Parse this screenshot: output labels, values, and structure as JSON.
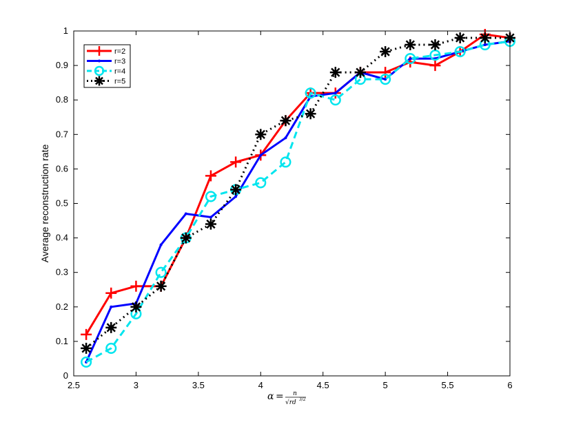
{
  "chart_data": {
    "type": "line",
    "title": "",
    "xlabel": "α = n/√(rd^{3/2})",
    "xlabel_parts": {
      "alpha": "α",
      "equals": "=",
      "numerator": "n",
      "denominator": "√rd",
      "exponent": "3/2"
    },
    "ylabel": "Average reconstruction rate",
    "xlim": [
      2.5,
      6
    ],
    "ylim": [
      0,
      1
    ],
    "xticks": [
      2.5,
      3,
      3.5,
      4,
      4.5,
      5,
      5.5,
      6
    ],
    "xtick_labels": [
      "2.5",
      "3",
      "3.5",
      "4",
      "4.5",
      "5",
      "5.5",
      "6"
    ],
    "yticks": [
      0,
      0.1,
      0.2,
      0.3,
      0.4,
      0.5,
      0.6,
      0.7,
      0.8,
      0.9,
      1
    ],
    "ytick_labels": [
      "0",
      "0.1",
      "0.2",
      "0.3",
      "0.4",
      "0.5",
      "0.6",
      "0.7",
      "0.8",
      "0.9",
      "1"
    ],
    "grid": false,
    "legend": "top-left",
    "x": [
      2.6,
      2.8,
      3.0,
      3.2,
      3.4,
      3.6,
      3.8,
      4.0,
      4.2,
      4.4,
      4.6,
      4.8,
      5.0,
      5.2,
      5.4,
      5.6,
      5.8,
      6.0
    ],
    "series": [
      {
        "name": "r=2",
        "color": "#ff0000",
        "marker": "plus",
        "line": "solid",
        "values": [
          0.12,
          0.24,
          0.26,
          0.26,
          0.4,
          0.58,
          0.62,
          0.64,
          0.74,
          0.82,
          0.82,
          0.88,
          0.88,
          0.91,
          0.9,
          0.94,
          0.99,
          0.98
        ]
      },
      {
        "name": "r=3",
        "color": "#0000ff",
        "marker": "dot",
        "line": "solid",
        "values": [
          0.04,
          0.2,
          0.21,
          0.38,
          0.47,
          0.46,
          0.52,
          0.64,
          0.69,
          0.81,
          0.82,
          0.88,
          0.86,
          0.92,
          0.92,
          0.94,
          0.96,
          0.97
        ]
      },
      {
        "name": "r=4",
        "color": "#00e5ee",
        "marker": "circle",
        "line": "dashed",
        "values": [
          0.04,
          0.08,
          0.18,
          0.3,
          0.4,
          0.52,
          0.54,
          0.56,
          0.62,
          0.82,
          0.8,
          0.86,
          0.86,
          0.92,
          0.93,
          0.94,
          0.96,
          0.97
        ]
      },
      {
        "name": "r=5",
        "color": "#000000",
        "marker": "asterisk",
        "line": "dotted",
        "values": [
          0.08,
          0.14,
          0.2,
          0.26,
          0.4,
          0.44,
          0.54,
          0.7,
          0.74,
          0.76,
          0.88,
          0.88,
          0.94,
          0.96,
          0.96,
          0.98,
          0.98,
          0.98
        ]
      }
    ]
  }
}
